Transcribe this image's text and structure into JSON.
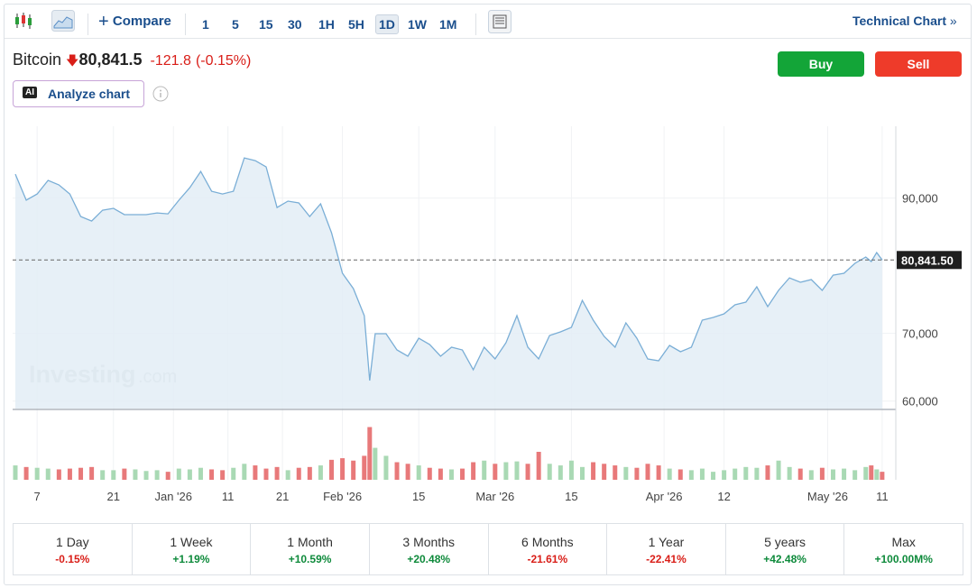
{
  "toolbar": {
    "compare": "Compare",
    "intervals": [
      "1",
      "5",
      "15",
      "30",
      "1H",
      "5H",
      "1D",
      "1W",
      "1M"
    ],
    "active_interval": "1D",
    "technical_chart": "Technical Chart"
  },
  "header": {
    "name": "Bitcoin",
    "price": "80,841.5",
    "change": "-121.8",
    "change_pct": "(-0.15%)",
    "buy": "Buy",
    "sell": "Sell",
    "ai_badge": "AI",
    "analyze": "Analyze chart"
  },
  "watermark": {
    "brand": "Investing",
    "suffix": ".com"
  },
  "chart_data": {
    "type": "line",
    "x": [
      0,
      2,
      4,
      6,
      8,
      10,
      12,
      14,
      16,
      18,
      20,
      22,
      24,
      26,
      28,
      30,
      32,
      34,
      36,
      38,
      40,
      42,
      44,
      46,
      48,
      50,
      52,
      54,
      56,
      58,
      60,
      62,
      64,
      65,
      66,
      68,
      70,
      72,
      74,
      76,
      78,
      80,
      82,
      84,
      86,
      88,
      90,
      92,
      94,
      96,
      98,
      100,
      102,
      104,
      106,
      108,
      110,
      112,
      114,
      116,
      118,
      120,
      122,
      124,
      126,
      128,
      130,
      132,
      134,
      136,
      138,
      140,
      142,
      144,
      146,
      148,
      150,
      152,
      154,
      156,
      157,
      158,
      159
    ],
    "series": [
      {
        "name": "Bitcoin",
        "color": "#7aaed6",
        "values": [
          93530,
          89670,
          90600,
          92600,
          91940,
          90600,
          87270,
          86600,
          88200,
          88470,
          87540,
          87540,
          87540,
          87800,
          87670,
          89670,
          91530,
          93930,
          91000,
          90600,
          91000,
          95930,
          95530,
          94600,
          88600,
          89540,
          89270,
          87270,
          89140,
          84870,
          78880,
          76620,
          72620,
          63030,
          69960,
          69960,
          67560,
          66630,
          69290,
          68360,
          66630,
          67960,
          67560,
          64630,
          67960,
          66230,
          68620,
          72620,
          67960,
          66230,
          69690,
          70220,
          70890,
          74880,
          71950,
          69560,
          67960,
          71550,
          69290,
          66230,
          65960,
          68220,
          67290,
          67960,
          71950,
          72350,
          72890,
          74220,
          74620,
          76880,
          73950,
          76350,
          78210,
          77550,
          77950,
          76350,
          78610,
          78880,
          80350,
          81280,
          80610,
          81940,
          80841.5
        ]
      }
    ],
    "volume": [
      18,
      16,
      15,
      14,
      13,
      14,
      15,
      16,
      12,
      12,
      14,
      13,
      11,
      12,
      10,
      14,
      13,
      15,
      13,
      12,
      15,
      20,
      18,
      14,
      16,
      12,
      15,
      16,
      18,
      25,
      27,
      24,
      30,
      66,
      40,
      30,
      22,
      20,
      18,
      15,
      14,
      13,
      14,
      22,
      24,
      20,
      22,
      23,
      20,
      35,
      20,
      18,
      24,
      16,
      22,
      20,
      18,
      16,
      15,
      20,
      18,
      14,
      13,
      12,
      14,
      10,
      12,
      14,
      16,
      15,
      18,
      24,
      16,
      14,
      12,
      15,
      13,
      14,
      12,
      16,
      18,
      13,
      10
    ],
    "vlim": [
      0,
      70
    ],
    "xlim": [
      0,
      162
    ],
    "xticks": [
      {
        "value": 4,
        "label": "7"
      },
      {
        "value": 18,
        "label": "21"
      },
      {
        "value": 29,
        "label": "Jan '26"
      },
      {
        "value": 39,
        "label": "11"
      },
      {
        "value": 49,
        "label": "21"
      },
      {
        "value": 60,
        "label": "Feb '26"
      },
      {
        "value": 74,
        "label": "15"
      },
      {
        "value": 88,
        "label": "Mar '26"
      },
      {
        "value": 102,
        "label": "15"
      },
      {
        "value": 119,
        "label": "Apr '26"
      },
      {
        "value": 130,
        "label": "12"
      },
      {
        "value": 149,
        "label": "May '26"
      },
      {
        "value": 159,
        "label": "11"
      }
    ],
    "ylim": [
      58900,
      100600
    ],
    "yticks": [
      {
        "value": 60000,
        "label": "60,000"
      },
      {
        "value": 70000,
        "label": "70,000"
      },
      {
        "value": 90000,
        "label": "90,000"
      }
    ],
    "last_price": {
      "value": 80841.5,
      "label": "80,841.50"
    },
    "grid": true
  },
  "periods": [
    {
      "label": "1 Day",
      "change": "-0.15%"
    },
    {
      "label": "1 Week",
      "change": "+1.19%"
    },
    {
      "label": "1 Month",
      "change": "+10.59%"
    },
    {
      "label": "3 Months",
      "change": "+20.48%"
    },
    {
      "label": "6 Months",
      "change": "-21.61%"
    },
    {
      "label": "1 Year",
      "change": "-22.41%"
    },
    {
      "label": "5 years",
      "change": "+42.48%"
    },
    {
      "label": "Max",
      "change": "+100.00M%"
    }
  ]
}
